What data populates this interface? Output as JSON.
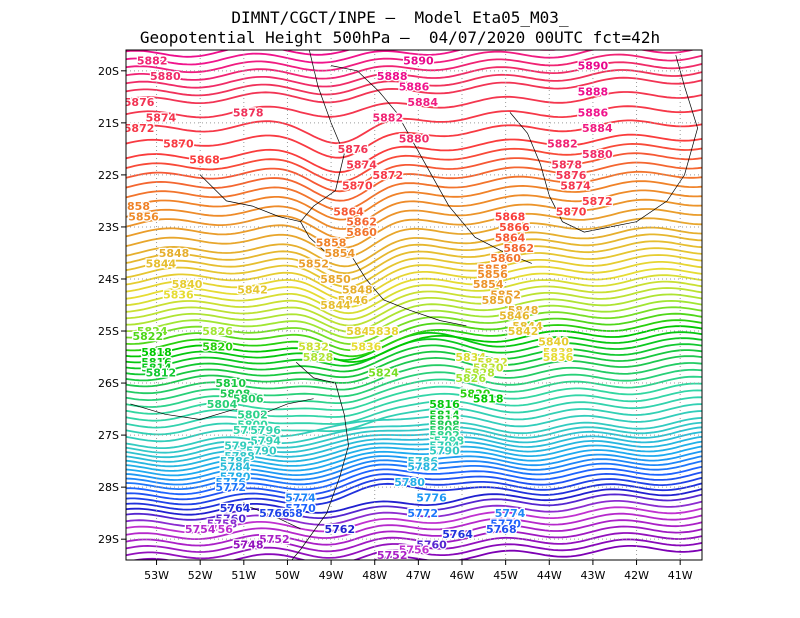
{
  "title_line1": "DIMNT/CGCT/INPE –  Model Eta05_M03_",
  "title_line2": "Geopotential Height 500hPa –  04/07/2020 00UTC fct=42h",
  "chart_data": {
    "type": "contour",
    "variable": "Geopotential Height 500hPa",
    "x_ticks": [
      "53W",
      "52W",
      "51W",
      "50W",
      "49W",
      "48W",
      "47W",
      "46W",
      "45W",
      "44W",
      "43W",
      "42W",
      "41W"
    ],
    "y_ticks": [
      "20S",
      "21S",
      "22S",
      "23S",
      "24S",
      "25S",
      "26S",
      "27S",
      "28S",
      "29S"
    ],
    "xlim_deg": [
      -53.7,
      -40.5
    ],
    "ylim_deg": [
      -29.4,
      -19.6
    ],
    "contour_interval": 2,
    "levels_range": [
      5744,
      5892
    ],
    "grid": "dotted",
    "contour_labels": [
      {
        "text": "5882",
        "lon": -53.1,
        "lat": -19.8,
        "v": 5882
      },
      {
        "text": "5880",
        "lon": -52.8,
        "lat": -20.1,
        "v": 5880
      },
      {
        "text": "5876",
        "lon": -53.4,
        "lat": -20.6,
        "v": 5876
      },
      {
        "text": "5874",
        "lon": -52.9,
        "lat": -20.9,
        "v": 5874
      },
      {
        "text": "5872",
        "lon": -53.4,
        "lat": -21.1,
        "v": 5872
      },
      {
        "text": "5870",
        "lon": -52.5,
        "lat": -21.4,
        "v": 5870
      },
      {
        "text": "5868",
        "lon": -51.9,
        "lat": -21.7,
        "v": 5868
      },
      {
        "text": "5878",
        "lon": -50.9,
        "lat": -20.8,
        "v": 5878
      },
      {
        "text": "5890",
        "lon": -47.0,
        "lat": -19.8,
        "v": 5890
      },
      {
        "text": "5888",
        "lon": -47.6,
        "lat": -20.1,
        "v": 5888
      },
      {
        "text": "5886",
        "lon": -47.1,
        "lat": -20.3,
        "v": 5886
      },
      {
        "text": "5884",
        "lon": -46.9,
        "lat": -20.6,
        "v": 5884
      },
      {
        "text": "5882",
        "lon": -47.7,
        "lat": -20.9,
        "v": 5882
      },
      {
        "text": "5880",
        "lon": -47.1,
        "lat": -21.3,
        "v": 5880
      },
      {
        "text": "5876",
        "lon": -48.5,
        "lat": -21.5,
        "v": 5876
      },
      {
        "text": "5874",
        "lon": -48.3,
        "lat": -21.8,
        "v": 5874
      },
      {
        "text": "5872",
        "lon": -47.7,
        "lat": -22.0,
        "v": 5872
      },
      {
        "text": "5870",
        "lon": -48.4,
        "lat": -22.2,
        "v": 5870
      },
      {
        "text": "5890",
        "lon": -43.0,
        "lat": -19.9,
        "v": 5890
      },
      {
        "text": "5888",
        "lon": -43.0,
        "lat": -20.4,
        "v": 5888
      },
      {
        "text": "5886",
        "lon": -43.0,
        "lat": -20.8,
        "v": 5886
      },
      {
        "text": "5884",
        "lon": -42.9,
        "lat": -21.1,
        "v": 5884
      },
      {
        "text": "5882",
        "lon": -43.7,
        "lat": -21.4,
        "v": 5882
      },
      {
        "text": "5880",
        "lon": -42.9,
        "lat": -21.6,
        "v": 5880
      },
      {
        "text": "5878",
        "lon": -43.6,
        "lat": -21.8,
        "v": 5878
      },
      {
        "text": "5876",
        "lon": -43.5,
        "lat": -22.0,
        "v": 5876
      },
      {
        "text": "5874",
        "lon": -43.4,
        "lat": -22.2,
        "v": 5874
      },
      {
        "text": "5872",
        "lon": -42.9,
        "lat": -22.5,
        "v": 5872
      },
      {
        "text": "5870",
        "lon": -43.5,
        "lat": -22.7,
        "v": 5870
      },
      {
        "text": "5858",
        "lon": -53.5,
        "lat": -22.6,
        "v": 5858
      },
      {
        "text": "5856",
        "lon": -53.3,
        "lat": -22.8,
        "v": 5856
      },
      {
        "text": "5848",
        "lon": -52.6,
        "lat": -23.5,
        "v": 5848
      },
      {
        "text": "5844",
        "lon": -52.9,
        "lat": -23.7,
        "v": 5844
      },
      {
        "text": "5840",
        "lon": -52.3,
        "lat": -24.1,
        "v": 5840
      },
      {
        "text": "5836",
        "lon": -52.5,
        "lat": -24.3,
        "v": 5836
      },
      {
        "text": "5842",
        "lon": -50.8,
        "lat": -24.2,
        "v": 5842
      },
      {
        "text": "5864",
        "lon": -48.6,
        "lat": -22.7,
        "v": 5864
      },
      {
        "text": "5862",
        "lon": -48.3,
        "lat": -22.9,
        "v": 5862
      },
      {
        "text": "5860",
        "lon": -48.3,
        "lat": -23.1,
        "v": 5860
      },
      {
        "text": "5858",
        "lon": -49.0,
        "lat": -23.3,
        "v": 5858
      },
      {
        "text": "5854",
        "lon": -48.8,
        "lat": -23.5,
        "v": 5854
      },
      {
        "text": "5852",
        "lon": -49.4,
        "lat": -23.7,
        "v": 5852
      },
      {
        "text": "5850",
        "lon": -48.9,
        "lat": -24.0,
        "v": 5850
      },
      {
        "text": "5848",
        "lon": -48.4,
        "lat": -24.2,
        "v": 5848
      },
      {
        "text": "5846",
        "lon": -48.5,
        "lat": -24.4,
        "v": 5846
      },
      {
        "text": "5844",
        "lon": -48.9,
        "lat": -24.5,
        "v": 5844
      },
      {
        "text": "5840",
        "lon": -48.3,
        "lat": -25.0,
        "v": 5840
      },
      {
        "text": "5838",
        "lon": -47.8,
        "lat": -25.0,
        "v": 5838
      },
      {
        "text": "5836",
        "lon": -48.2,
        "lat": -25.3,
        "v": 5836
      },
      {
        "text": "5832",
        "lon": -49.4,
        "lat": -25.3,
        "v": 5832
      },
      {
        "text": "5828",
        "lon": -49.3,
        "lat": -25.5,
        "v": 5828
      },
      {
        "text": "5868",
        "lon": -44.9,
        "lat": -22.8,
        "v": 5868
      },
      {
        "text": "5866",
        "lon": -44.8,
        "lat": -23.0,
        "v": 5866
      },
      {
        "text": "5864",
        "lon": -44.9,
        "lat": -23.2,
        "v": 5864
      },
      {
        "text": "5862",
        "lon": -44.7,
        "lat": -23.4,
        "v": 5862
      },
      {
        "text": "5860",
        "lon": -45.0,
        "lat": -23.6,
        "v": 5860
      },
      {
        "text": "5858",
        "lon": -45.3,
        "lat": -23.8,
        "v": 5858
      },
      {
        "text": "5856",
        "lon": -45.3,
        "lat": -23.9,
        "v": 5856
      },
      {
        "text": "5854",
        "lon": -45.4,
        "lat": -24.1,
        "v": 5854
      },
      {
        "text": "5852",
        "lon": -45.0,
        "lat": -24.3,
        "v": 5852
      },
      {
        "text": "5850",
        "lon": -45.2,
        "lat": -24.4,
        "v": 5850
      },
      {
        "text": "5848",
        "lon": -44.6,
        "lat": -24.6,
        "v": 5848
      },
      {
        "text": "5846",
        "lon": -44.8,
        "lat": -24.7,
        "v": 5846
      },
      {
        "text": "5844",
        "lon": -44.5,
        "lat": -24.9,
        "v": 5844
      },
      {
        "text": "5842",
        "lon": -44.6,
        "lat": -25.0,
        "v": 5842
      },
      {
        "text": "5840",
        "lon": -43.9,
        "lat": -25.2,
        "v": 5840
      },
      {
        "text": "5838",
        "lon": -43.8,
        "lat": -25.4,
        "v": 5838
      },
      {
        "text": "5836",
        "lon": -43.8,
        "lat": -25.5,
        "v": 5836
      },
      {
        "text": "5824",
        "lon": -53.1,
        "lat": -25.0,
        "v": 5824
      },
      {
        "text": "5822",
        "lon": -53.2,
        "lat": -25.1,
        "v": 5822
      },
      {
        "text": "5826",
        "lon": -51.6,
        "lat": -25.0,
        "v": 5826
      },
      {
        "text": "5820",
        "lon": -51.6,
        "lat": -25.3,
        "v": 5820
      },
      {
        "text": "5818",
        "lon": -53.0,
        "lat": -25.4,
        "v": 5818
      },
      {
        "text": "5816",
        "lon": -53.0,
        "lat": -25.6,
        "v": 5816
      },
      {
        "text": "5814",
        "lon": -53.0,
        "lat": -25.7,
        "v": 5814
      },
      {
        "text": "5812",
        "lon": -52.9,
        "lat": -25.8,
        "v": 5812
      },
      {
        "text": "5810",
        "lon": -51.3,
        "lat": -26.0,
        "v": 5810
      },
      {
        "text": "5808",
        "lon": -51.2,
        "lat": -26.2,
        "v": 5808
      },
      {
        "text": "5806",
        "lon": -50.9,
        "lat": -26.3,
        "v": 5806
      },
      {
        "text": "5804",
        "lon": -51.5,
        "lat": -26.4,
        "v": 5804
      },
      {
        "text": "5802",
        "lon": -50.8,
        "lat": -26.6,
        "v": 5802
      },
      {
        "text": "5800",
        "lon": -50.8,
        "lat": -26.8,
        "v": 5800
      },
      {
        "text": "5798",
        "lon": -50.9,
        "lat": -26.9,
        "v": 5798
      },
      {
        "text": "5796",
        "lon": -50.5,
        "lat": -26.9,
        "v": 5796
      },
      {
        "text": "5794",
        "lon": -50.5,
        "lat": -27.1,
        "v": 5794
      },
      {
        "text": "5792",
        "lon": -51.1,
        "lat": -27.2,
        "v": 5792
      },
      {
        "text": "5790",
        "lon": -50.6,
        "lat": -27.3,
        "v": 5790
      },
      {
        "text": "5788",
        "lon": -51.1,
        "lat": -27.4,
        "v": 5788
      },
      {
        "text": "5786",
        "lon": -51.2,
        "lat": -27.5,
        "v": 5786
      },
      {
        "text": "5784",
        "lon": -51.2,
        "lat": -27.6,
        "v": 5784
      },
      {
        "text": "5780",
        "lon": -51.2,
        "lat": -27.8,
        "v": 5780
      },
      {
        "text": "5776",
        "lon": -51.3,
        "lat": -27.9,
        "v": 5776
      },
      {
        "text": "5772",
        "lon": -51.3,
        "lat": -28.0,
        "v": 5772
      },
      {
        "text": "5824",
        "lon": -47.8,
        "lat": -25.8,
        "v": 5824
      },
      {
        "text": "5834",
        "lon": -45.8,
        "lat": -25.5,
        "v": 5834
      },
      {
        "text": "5832",
        "lon": -45.3,
        "lat": -25.6,
        "v": 5832
      },
      {
        "text": "5830",
        "lon": -45.4,
        "lat": -25.7,
        "v": 5830
      },
      {
        "text": "5828",
        "lon": -45.6,
        "lat": -25.8,
        "v": 5828
      },
      {
        "text": "5826",
        "lon": -45.8,
        "lat": -25.9,
        "v": 5826
      },
      {
        "text": "5820",
        "lon": -45.7,
        "lat": -26.2,
        "v": 5820
      },
      {
        "text": "5818",
        "lon": -45.4,
        "lat": -26.3,
        "v": 5818
      },
      {
        "text": "5816",
        "lon": -46.4,
        "lat": -26.4,
        "v": 5816
      },
      {
        "text": "5814",
        "lon": -46.4,
        "lat": -26.6,
        "v": 5814
      },
      {
        "text": "5812",
        "lon": -46.4,
        "lat": -26.7,
        "v": 5812
      },
      {
        "text": "5808",
        "lon": -46.4,
        "lat": -26.8,
        "v": 5808
      },
      {
        "text": "5806",
        "lon": -46.4,
        "lat": -26.9,
        "v": 5806
      },
      {
        "text": "5802",
        "lon": -46.4,
        "lat": -27.0,
        "v": 5802
      },
      {
        "text": "5798",
        "lon": -46.3,
        "lat": -27.1,
        "v": 5798
      },
      {
        "text": "5794",
        "lon": -46.4,
        "lat": -27.2,
        "v": 5794
      },
      {
        "text": "5790",
        "lon": -46.4,
        "lat": -27.3,
        "v": 5790
      },
      {
        "text": "5786",
        "lon": -46.9,
        "lat": -27.5,
        "v": 5786
      },
      {
        "text": "5782",
        "lon": -46.9,
        "lat": -27.6,
        "v": 5782
      },
      {
        "text": "5774",
        "lon": -49.7,
        "lat": -28.2,
        "v": 5774
      },
      {
        "text": "5770",
        "lon": -49.7,
        "lat": -28.4,
        "v": 5770
      },
      {
        "text": "5768",
        "lon": -50.0,
        "lat": -28.5,
        "v": 5768
      },
      {
        "text": "5766",
        "lon": -50.3,
        "lat": -28.5,
        "v": 5766
      },
      {
        "text": "5764",
        "lon": -51.2,
        "lat": -28.4,
        "v": 5764
      },
      {
        "text": "5760",
        "lon": -51.3,
        "lat": -28.6,
        "v": 5760
      },
      {
        "text": "5758",
        "lon": -51.5,
        "lat": -28.7,
        "v": 5758
      },
      {
        "text": "5756",
        "lon": -51.6,
        "lat": -28.8,
        "v": 5756
      },
      {
        "text": "5754",
        "lon": -52.0,
        "lat": -28.8,
        "v": 5754
      },
      {
        "text": "5752",
        "lon": -50.3,
        "lat": -29.0,
        "v": 5752
      },
      {
        "text": "5748",
        "lon": -50.9,
        "lat": -29.1,
        "v": 5748
      },
      {
        "text": "5762",
        "lon": -48.8,
        "lat": -28.8,
        "v": 5762
      },
      {
        "text": "5780",
        "lon": -47.2,
        "lat": -27.9,
        "v": 5780
      },
      {
        "text": "5776",
        "lon": -46.7,
        "lat": -28.2,
        "v": 5776
      },
      {
        "text": "5772",
        "lon": -46.9,
        "lat": -28.5,
        "v": 5772
      },
      {
        "text": "5774",
        "lon": -44.9,
        "lat": -28.5,
        "v": 5774
      },
      {
        "text": "5770",
        "lon": -45.0,
        "lat": -28.7,
        "v": 5770
      },
      {
        "text": "5768",
        "lon": -45.1,
        "lat": -28.8,
        "v": 5768
      },
      {
        "text": "5764",
        "lon": -46.1,
        "lat": -28.9,
        "v": 5764
      },
      {
        "text": "5760",
        "lon": -46.7,
        "lat": -29.1,
        "v": 5760
      },
      {
        "text": "5756",
        "lon": -47.1,
        "lat": -29.2,
        "v": 5756
      },
      {
        "text": "5752",
        "lon": -47.6,
        "lat": -29.3,
        "v": 5752
      }
    ]
  },
  "colors": {
    "background": "#ffffff",
    "grid": "#9a9a9a",
    "coastline": "#000000",
    "levels": [
      {
        "v": 5744,
        "c": "#7d00b4"
      },
      {
        "v": 5756,
        "c": "#c030d0"
      },
      {
        "v": 5762,
        "c": "#2020d0"
      },
      {
        "v": 5770,
        "c": "#1e64ff"
      },
      {
        "v": 5778,
        "c": "#1eaaf0"
      },
      {
        "v": 5788,
        "c": "#32c8c8"
      },
      {
        "v": 5800,
        "c": "#32d7a0"
      },
      {
        "v": 5808,
        "c": "#1ec850"
      },
      {
        "v": 5818,
        "c": "#00c800"
      },
      {
        "v": 5826,
        "c": "#a0e632"
      },
      {
        "v": 5836,
        "c": "#e6dc32"
      },
      {
        "v": 5848,
        "c": "#e6af2d"
      },
      {
        "v": 5858,
        "c": "#f08228"
      },
      {
        "v": 5868,
        "c": "#fa3c3c"
      },
      {
        "v": 5878,
        "c": "#f0325a"
      },
      {
        "v": 5886,
        "c": "#f0148c"
      },
      {
        "v": 5892,
        "c": "#e6008c"
      }
    ]
  }
}
